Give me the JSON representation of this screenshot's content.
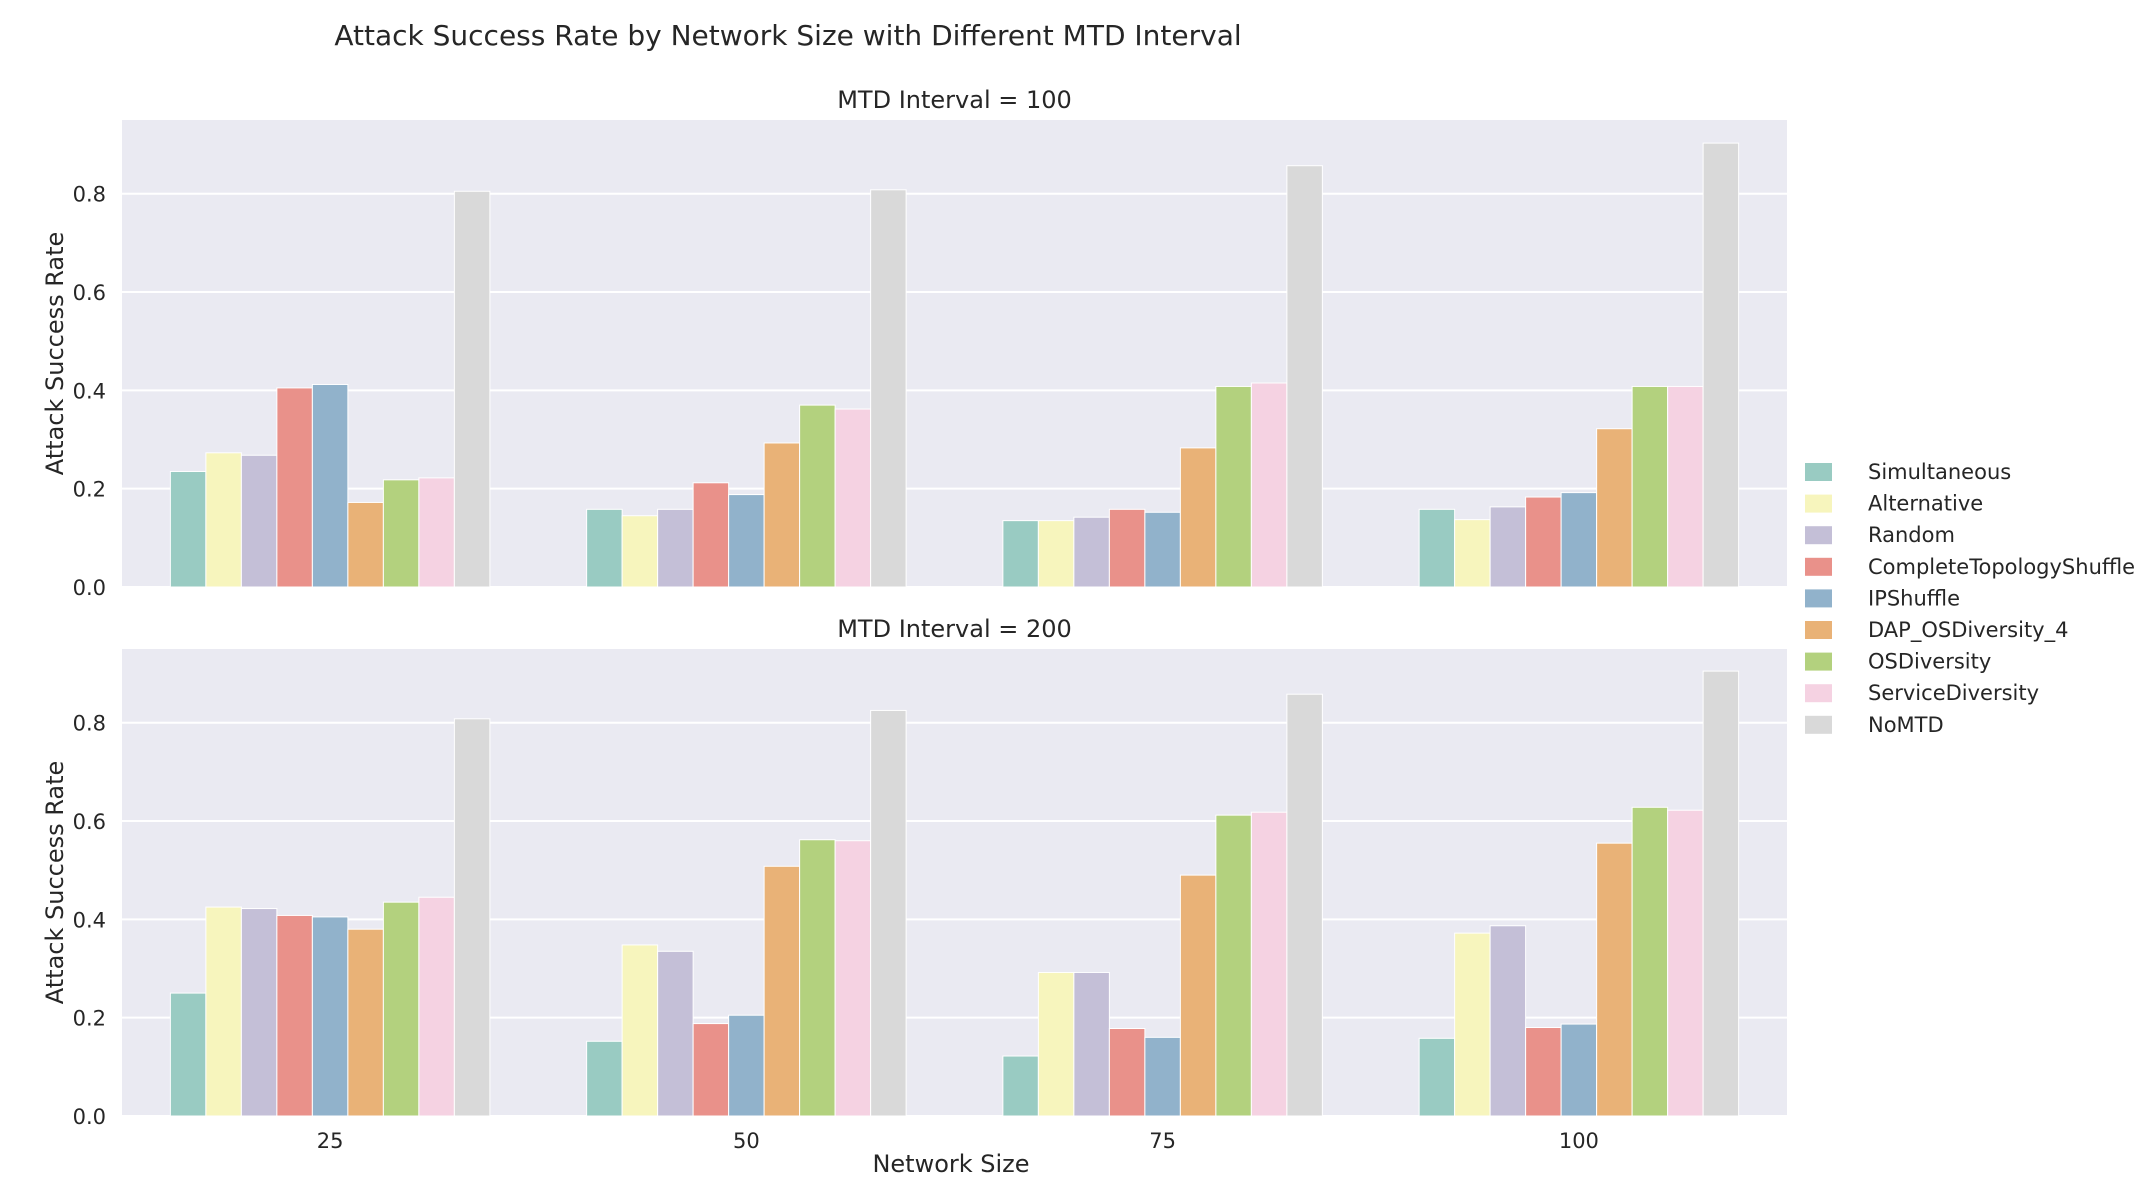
{
  "chart_data": {
    "type": "bar",
    "title": "Attack Success Rate by Network Size with Different MTD Interval",
    "xlabel": "Network Size",
    "ylabel": "Attack Success Rate",
    "categories": [
      "25",
      "50",
      "75",
      "100"
    ],
    "ylim": [
      0,
      0.95
    ],
    "yticks": [
      "0.0",
      "0.2",
      "0.4",
      "0.6",
      "0.8"
    ],
    "grid": true,
    "legend_position": "right",
    "series_names": [
      "Simultaneous",
      "Alternative",
      "Random",
      "CompleteTopologyShuffle",
      "IPShuffle",
      "DAP_OSDiversity_4",
      "OSDiversity",
      "ServiceDiversity",
      "NoMTD"
    ],
    "series_colors": [
      "#99cbc2",
      "#f7f5bd",
      "#c4bfd7",
      "#e9918a",
      "#91b2cb",
      "#e9b277",
      "#b3d17e",
      "#f5d2e2",
      "#d9d9d9"
    ],
    "panels": [
      {
        "title": "MTD Interval = 100",
        "values": [
          [
            0.235,
            0.158,
            0.135,
            0.158
          ],
          [
            0.273,
            0.145,
            0.135,
            0.137
          ],
          [
            0.268,
            0.158,
            0.142,
            0.163
          ],
          [
            0.405,
            0.212,
            0.158,
            0.183
          ],
          [
            0.412,
            0.188,
            0.152,
            0.192
          ],
          [
            0.172,
            0.293,
            0.283,
            0.322
          ],
          [
            0.218,
            0.37,
            0.408,
            0.408
          ],
          [
            0.222,
            0.362,
            0.415,
            0.408
          ],
          [
            0.805,
            0.808,
            0.857,
            0.903
          ]
        ]
      },
      {
        "title": "MTD Interval = 200",
        "values": [
          [
            0.25,
            0.152,
            0.122,
            0.158
          ],
          [
            0.425,
            0.348,
            0.292,
            0.372
          ],
          [
            0.422,
            0.335,
            0.292,
            0.387
          ],
          [
            0.408,
            0.188,
            0.178,
            0.18
          ],
          [
            0.405,
            0.205,
            0.16,
            0.187
          ],
          [
            0.38,
            0.508,
            0.49,
            0.555
          ],
          [
            0.435,
            0.562,
            0.612,
            0.628
          ],
          [
            0.445,
            0.56,
            0.618,
            0.622
          ],
          [
            0.808,
            0.825,
            0.858,
            0.905
          ]
        ]
      }
    ]
  }
}
